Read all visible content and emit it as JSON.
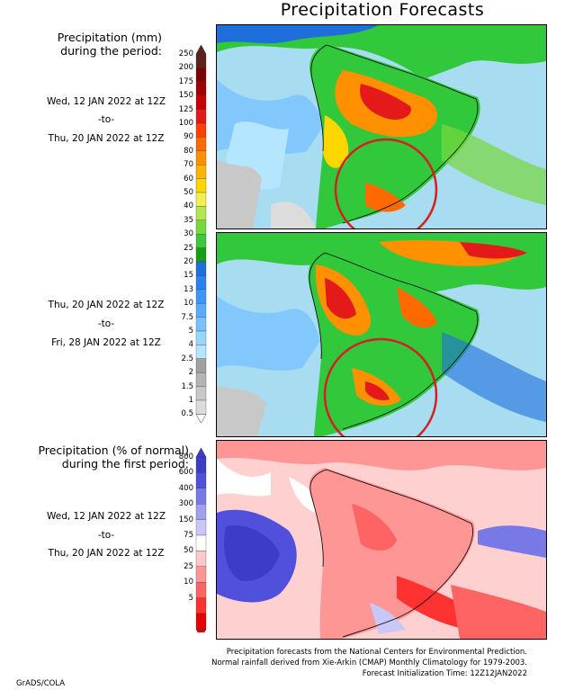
{
  "title": "Precipitation Forecasts",
  "precip_title_line1": "Precipitation (mm)",
  "precip_title_line2": "during the period:",
  "period1": {
    "start": "Wed, 12 JAN 2022 at 12Z",
    "to": "-to-",
    "end": "Thu, 20 JAN 2022 at 12Z"
  },
  "period2": {
    "start": "Thu, 20 JAN 2022 at 12Z",
    "to": "-to-",
    "end": "Fri, 28 JAN 2022 at 12Z"
  },
  "pct_title_line1": "Precipitation (% of normal)",
  "pct_title_line2": "during the first period:",
  "period3": {
    "start": "Wed, 12 JAN 2022 at 12Z",
    "to": "-to-",
    "end": "Thu, 20 JAN 2022 at 12Z"
  },
  "mm_scale": {
    "levels": [
      "250",
      "200",
      "175",
      "150",
      "125",
      "100",
      "90",
      "80",
      "70",
      "60",
      "50",
      "40",
      "35",
      "30",
      "25",
      "20",
      "15",
      "13",
      "10",
      "7.5",
      "5",
      "4",
      "2.5",
      "2",
      "1.5",
      "1",
      "0.5"
    ],
    "colors": [
      "#5a2419",
      "#7a0000",
      "#a00000",
      "#c80000",
      "#e41a1a",
      "#ff4000",
      "#ff6a00",
      "#ff9000",
      "#ffb400",
      "#ffd700",
      "#f0f050",
      "#b4e650",
      "#78d73c",
      "#3cc83c",
      "#14a014",
      "#1e6edc",
      "#2882f0",
      "#3c96fa",
      "#5aaaff",
      "#78c3ff",
      "#96d7ff",
      "#b4e6ff",
      "#a0a0a0",
      "#b4b4b4",
      "#c8c8c8",
      "#dcdcdc"
    ]
  },
  "pct_scale": {
    "levels": [
      "800",
      "600",
      "400",
      "300",
      "150",
      "75",
      "50",
      "25",
      "10",
      "5"
    ],
    "colors": [
      "#3c3cc8",
      "#5050dc",
      "#7878e6",
      "#a0a0f0",
      "#c8c8f8",
      "#ffffff",
      "#ffc8c8",
      "#ff9696",
      "#ff6464",
      "#ff3232",
      "#e60000"
    ]
  },
  "footer_line1": "Precipitation forecasts from the National Centers for Environmental Prediction.",
  "footer_line2": "Normal rainfall derived from Xie-Arkin (CMAP) Monthly Climatology for 1979-2003.",
  "footer_line3": "Forecast Initialization Time: 12Z12JAN2022",
  "brand": "GrADS/COLA",
  "colors": {
    "highlight_circle": "#d42020",
    "ocean_dry": "#a8dcf0",
    "land_wet": "#32c83c"
  }
}
